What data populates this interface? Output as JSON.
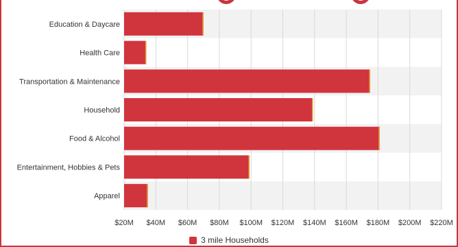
{
  "chart_data": {
    "type": "bar",
    "orientation": "horizontal",
    "categories": [
      "Education & Daycare",
      "Health Care",
      "Transportation & Maintenance",
      "Household",
      "Food & Alcohol",
      "Entertainment, Hobbies & Pets",
      "Apparel"
    ],
    "series": [
      {
        "name": "3 mile Households",
        "values": [
          70,
          34,
          175,
          139,
          181,
          99,
          35
        ],
        "color": "#d0343d"
      }
    ],
    "value_unit": "$M",
    "xlim": [
      20,
      220
    ],
    "x_ticks": [
      20,
      40,
      60,
      80,
      100,
      120,
      140,
      160,
      180,
      200,
      220
    ],
    "tick_labels": [
      "$20M",
      "$40M",
      "$60M",
      "$80M",
      "$100M",
      "$120M",
      "$140M",
      "$160M",
      "$180M",
      "$200M",
      "$220M"
    ],
    "title": "",
    "xlabel": "",
    "ylabel": "",
    "grid": true,
    "band_colors": [
      "#f2f2f2",
      "#ffffff"
    ],
    "legend_position": "bottom-center"
  },
  "colors": {
    "accent": "#c8353e",
    "bar": "#d0343d",
    "bar_edge": "#e6a13a",
    "gridline": "#d9d9d9",
    "text": "#333333"
  }
}
